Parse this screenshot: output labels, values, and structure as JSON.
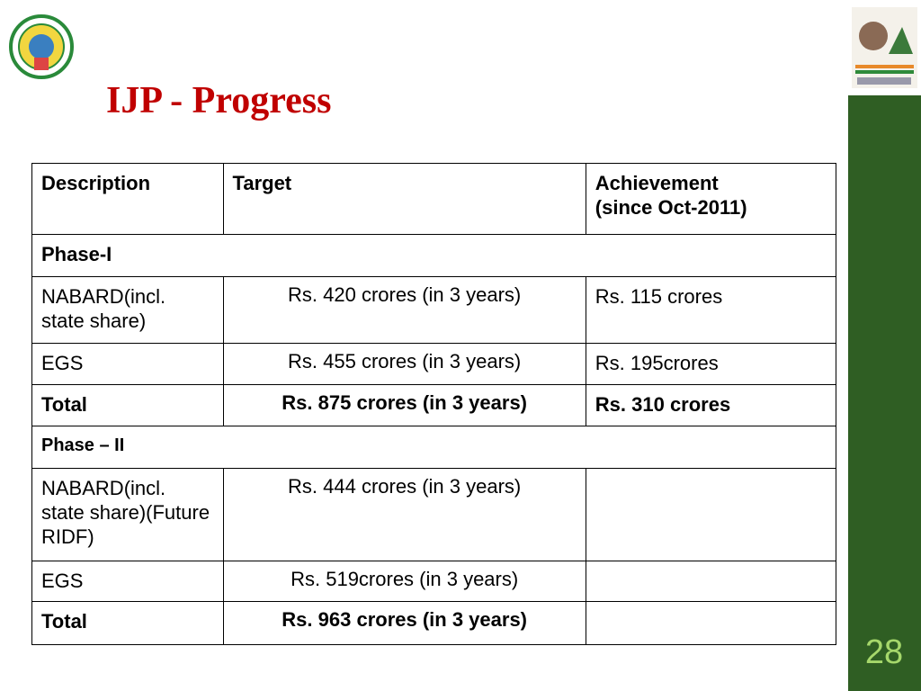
{
  "slide": {
    "title": "IJP - Progress",
    "page_number": "28"
  },
  "table": {
    "header": [
      "Description",
      "Target",
      [
        "Achievement",
        "(since Oct-2011)"
      ]
    ],
    "rows": [
      {
        "phase": "Phase-I"
      },
      {
        "description": "NABARD",
        "notes": [
          "(incl. state share)"
        ],
        "target": "Rs. 420 crores  (in 3 years)",
        "achievement": "Rs. 115 crores"
      },
      {
        "description": "EGS",
        "target": "Rs. 455 crores  (in 3 years)",
        "achievement": "Rs. 195crores"
      },
      {
        "description": "Total",
        "target": "Rs. 875 crores  (in 3 years)",
        "achievement": "Rs. 310 crores",
        "bold": true
      },
      {
        "phase": "Phase – II",
        "small": true
      },
      {
        "description": "NABARD",
        "notes": [
          "(incl. state share)",
          "(Future RIDF)"
        ],
        "target": "Rs. 444 crores  (in 3 years)"
      },
      {
        "description": "EGS",
        "target": "Rs. 519crores  (in 3 years)"
      },
      {
        "description": "Total",
        "target": "Rs. 963 crores  (in 3 years)",
        "bold": true
      }
    ]
  }
}
